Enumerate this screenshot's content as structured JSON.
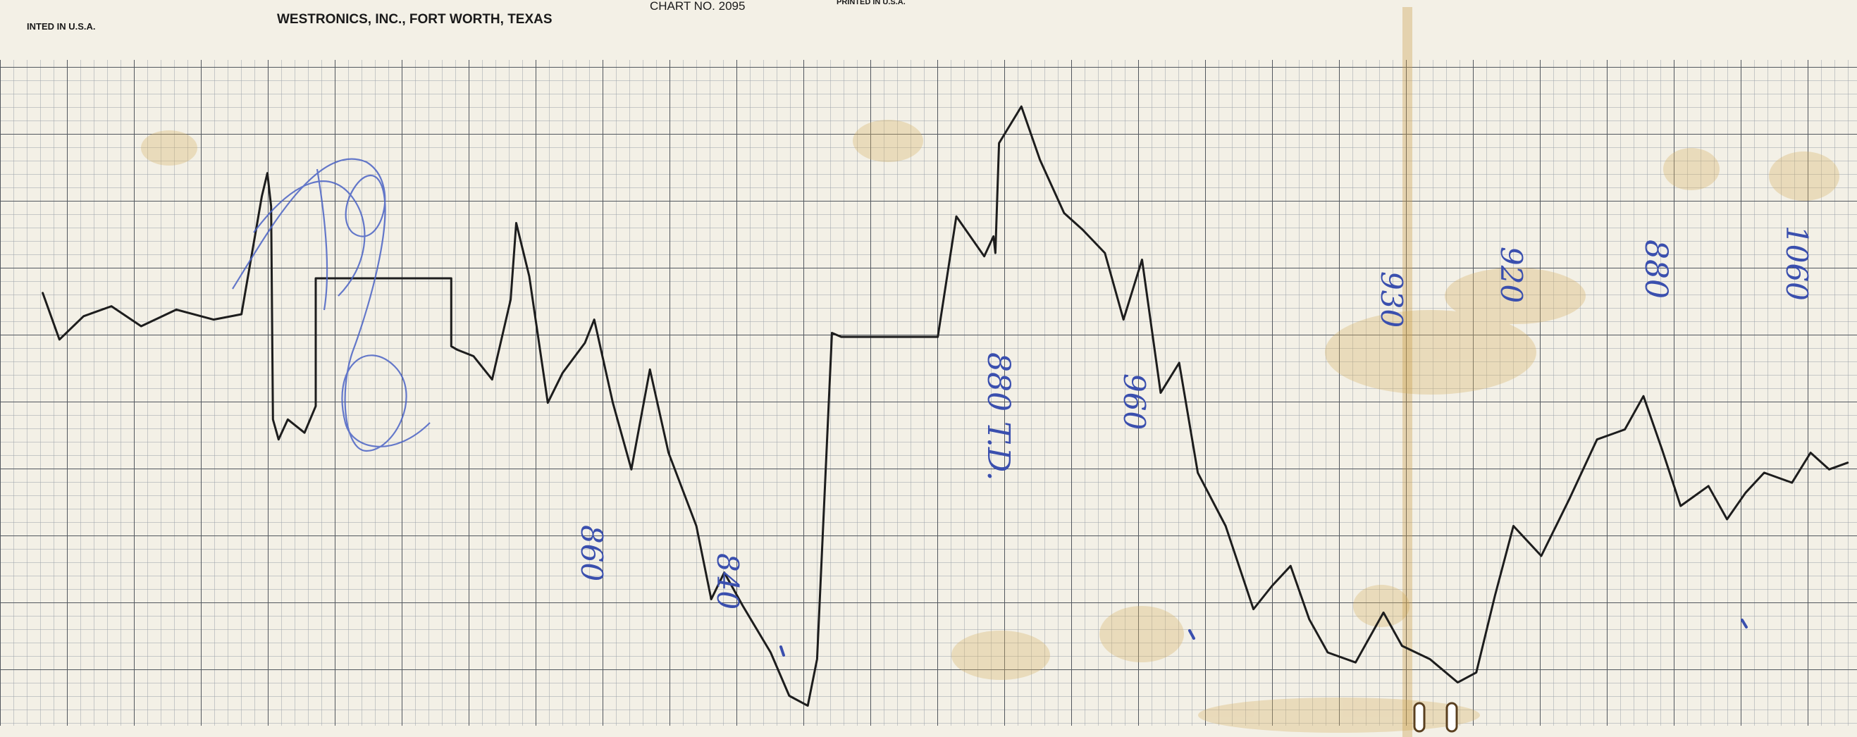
{
  "header": {
    "printed_left": "INTED IN U.S.A.",
    "company": "WESTRONICS, INC., FORT WORTH, TEXAS",
    "chart_no": "CHART NO. 2095",
    "printed_right": "PRINTED IN U.S.A."
  },
  "handwritten": {
    "n1": "860",
    "n2": "840",
    "n3": "880 T.D.",
    "n4": "960",
    "n5": "930",
    "n6": "920",
    "n7": "880",
    "n8": "1060"
  },
  "colors": {
    "paper": "#f3f0e6",
    "grid_minor": "#9aa0a8",
    "grid_major": "#52575e",
    "trace": "#1d1d1d",
    "ink": "#3a4fae",
    "stain": "#d8b46a"
  },
  "chart_data": {
    "type": "line",
    "title": "",
    "xlabel": "",
    "ylabel": "",
    "grid": true,
    "x_range": [
      0,
      100
    ],
    "y_range": [
      0,
      100
    ],
    "series": [
      {
        "x": [
          2.3,
          3.2,
          4.5,
          6.0,
          7.6,
          9.5,
          11.5,
          13.0,
          14.1,
          14.4,
          14.6,
          14.7,
          15.0,
          15.5,
          16.4,
          17.0,
          17.0,
          19.5,
          21.0,
          23.0,
          24.3,
          24.3,
          24.6,
          25.5,
          26.5,
          27.5,
          27.8,
          28.5,
          29.5,
          30.3,
          31.5,
          32.0,
          33.0,
          34.0,
          35.0,
          36.0,
          37.5,
          38.3,
          39.0,
          40.0,
          41.5,
          42.5,
          43.5,
          44.0,
          44.8,
          45.3,
          45.3,
          45.5,
          46.0,
          50.5,
          51.5,
          53.0,
          53.5,
          53.6,
          53.8,
          55.0,
          56.0,
          57.3,
          58.3,
          59.5,
          60.5,
          61.5,
          62.5,
          63.5,
          64.5,
          66.0,
          67.5,
          68.5,
          69.5,
          70.5,
          71.5,
          73.0,
          74.5,
          75.5,
          77.0,
          78.5,
          79.5,
          80.5,
          81.5,
          83.0,
          84.5,
          86.0,
          87.5,
          88.5,
          89.5,
          90.5,
          92.0,
          93.0,
          94.0,
          95.0,
          96.5,
          97.5,
          98.5,
          99.5
        ],
        "y": [
          65.0,
          58.0,
          61.5,
          63.0,
          60.0,
          62.5,
          61.0,
          61.8,
          79.5,
          83.0,
          78.0,
          46.0,
          43.0,
          46.0,
          44.0,
          48.0,
          67.2,
          67.2,
          67.2,
          67.2,
          67.2,
          57.0,
          56.5,
          55.5,
          52.0,
          64.0,
          75.5,
          67.5,
          48.5,
          53.0,
          57.5,
          61.0,
          48.5,
          38.5,
          53.5,
          41.0,
          30.0,
          19.0,
          23.0,
          18.0,
          11.0,
          4.5,
          3.0,
          10.0,
          59.0,
          58.4,
          58.4,
          58.4,
          58.4,
          58.4,
          76.5,
          70.5,
          73.5,
          71.0,
          87.5,
          93.0,
          85.0,
          77.0,
          74.5,
          71.0,
          61.0,
          70.0,
          50.0,
          54.5,
          38.0,
          30.0,
          17.5,
          21.0,
          24.0,
          16.0,
          11.0,
          9.5,
          17.0,
          12.0,
          10.0,
          6.5,
          8.0,
          19.5,
          30.0,
          25.5,
          34.0,
          43.0,
          44.5,
          49.5,
          41.5,
          33.0,
          36.0,
          31.0,
          35.0,
          38.0,
          36.5,
          41.0,
          38.5,
          39.5
        ]
      }
    ]
  }
}
